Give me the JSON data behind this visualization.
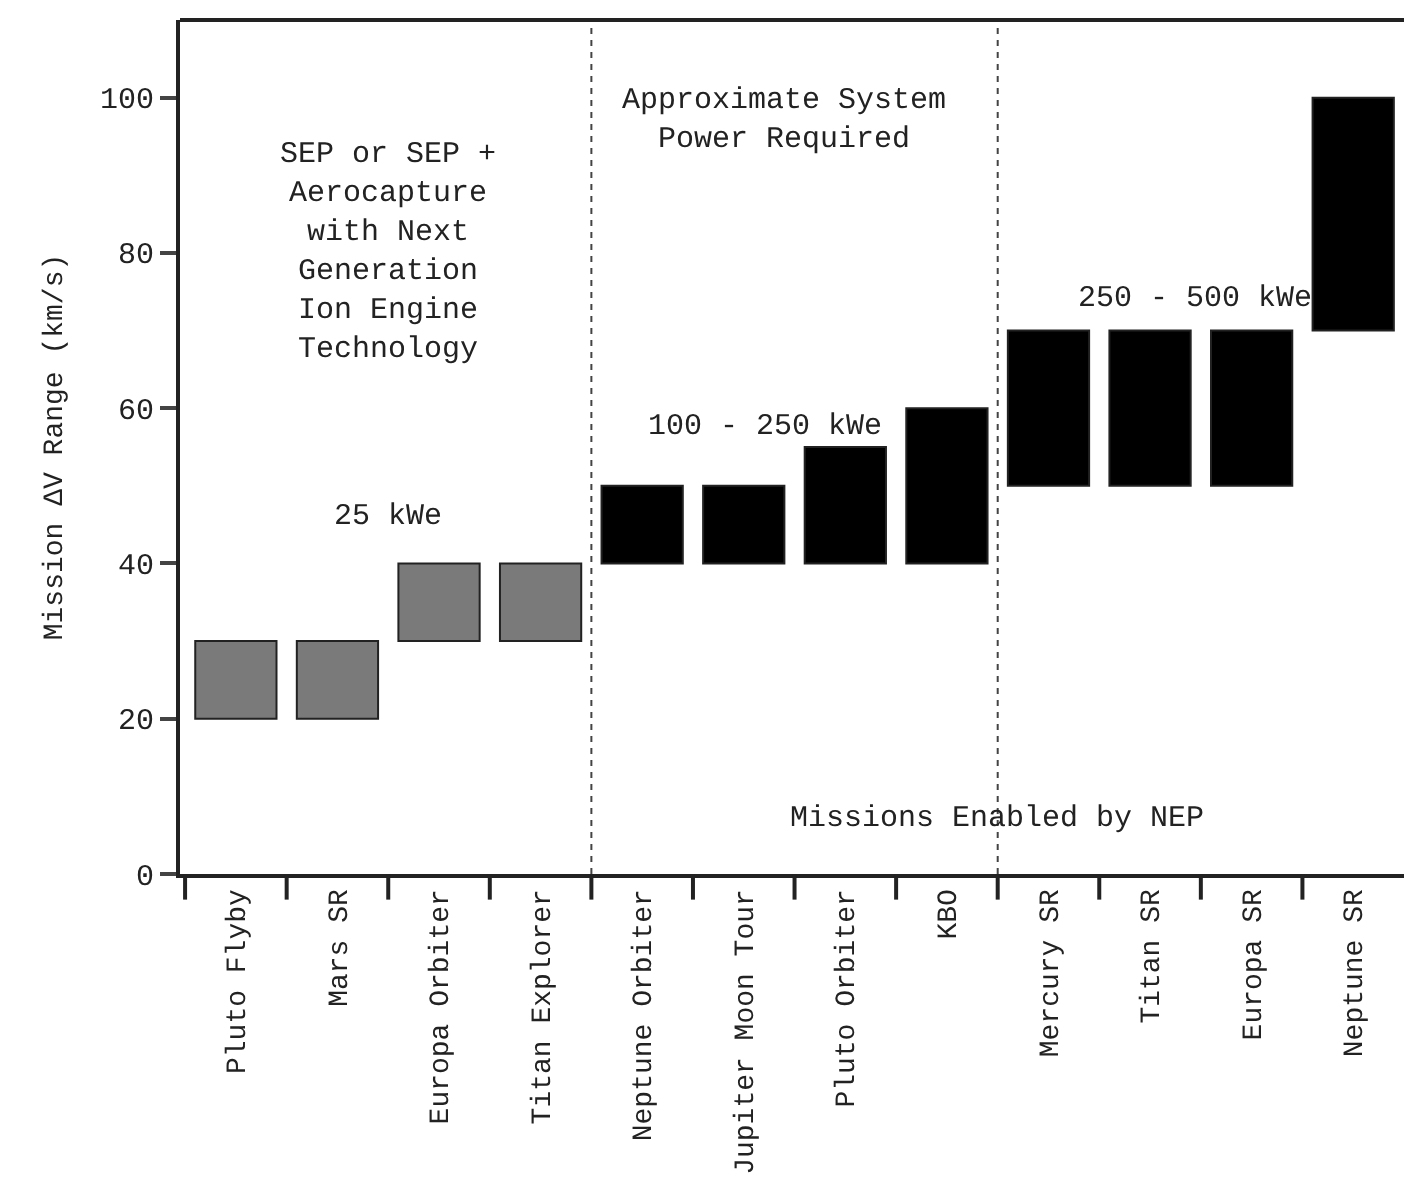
{
  "chart_data": {
    "type": "bar",
    "ylabel": "Mission ΔV Range (km/s)",
    "categories": [
      "Pluto Flyby",
      "Mars SR",
      "Europa Orbiter",
      "Titan Explorer",
      "Neptune Orbiter",
      "Jupiter Moon Tour",
      "Pluto Orbiter",
      "KBO",
      "Mercury SR",
      "Titan SR",
      "Europa SR",
      "Neptune SR"
    ],
    "base": [
      20,
      20,
      30,
      30,
      40,
      40,
      40,
      40,
      50,
      50,
      50,
      70
    ],
    "values": [
      10,
      10,
      10,
      10,
      10,
      10,
      15,
      20,
      20,
      20,
      20,
      30
    ],
    "colors": [
      "#7a7a7a",
      "#7a7a7a",
      "#7a7a7a",
      "#7a7a7a",
      "#000000",
      "#000000",
      "#000000",
      "#000000",
      "#000000",
      "#000000",
      "#000000",
      "#000000"
    ],
    "ylim": [
      0,
      110
    ],
    "yticks": [
      0,
      20,
      40,
      60,
      80,
      100
    ],
    "annotations": [
      "SEP or SEP +\nAerocapture\nwith Next\nGeneration\nIon Engine\nTechnology",
      "25 kWe",
      "Approximate System\nPower Required",
      "100 - 250 kWe",
      "250 - 500 kWe",
      "Missions Enabled by NEP"
    ]
  }
}
